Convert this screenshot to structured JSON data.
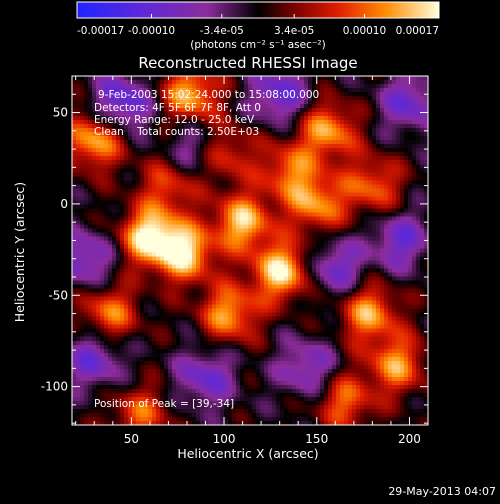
{
  "colorbar": {
    "tick_labels": [
      "-0.00017",
      "-0.00010",
      "-3.4e-05",
      "3.4e-05",
      "0.00010",
      "0.00017"
    ],
    "tick_values": [
      -0.00017,
      -0.0001,
      -3.4e-05,
      3.4e-05,
      0.0001,
      0.00017
    ],
    "range": [
      -0.00017,
      0.00017
    ],
    "unit_label": "(photons cm⁻² s⁻¹ asec⁻²)"
  },
  "chart_data": {
    "type": "heatmap",
    "title": "Reconstructed RHESSI Image",
    "xlabel": "Heliocentric X (arcsec)",
    "ylabel": "Heliocentric Y (arcsec)",
    "xlim": [
      18,
      210
    ],
    "ylim": [
      -121,
      70
    ],
    "x_ticks": [
      50,
      100,
      150,
      200
    ],
    "y_ticks": [
      -100,
      -50,
      0,
      50
    ],
    "x_tick_labels": [
      "50",
      "100",
      "150",
      "200"
    ],
    "y_tick_labels": [
      "-100",
      "-50",
      "0",
      "50"
    ],
    "peak_position": [
      39,
      -34
    ],
    "blobs": [
      {
        "x": 60,
        "y": -18,
        "amp": 1.0
      },
      {
        "x": 79,
        "y": -27,
        "amp": 0.9
      },
      {
        "x": 82,
        "y": 60,
        "amp": 0.8
      },
      {
        "x": 103,
        "y": -60,
        "amp": 0.75
      },
      {
        "x": 110,
        "y": -10,
        "amp": 0.85
      },
      {
        "x": 131,
        "y": -37,
        "amp": 0.95
      },
      {
        "x": 150,
        "y": 0,
        "amp": 0.7
      },
      {
        "x": 156,
        "y": 40,
        "amp": 0.75
      },
      {
        "x": 30,
        "y": 35,
        "amp": 0.8
      },
      {
        "x": 135,
        "y": 18,
        "amp": 0.6
      },
      {
        "x": 38,
        "y": -60,
        "amp": 0.65
      },
      {
        "x": 178,
        "y": -60,
        "amp": 0.75
      },
      {
        "x": 193,
        "y": -88,
        "amp": 0.7
      },
      {
        "x": 165,
        "y": -108,
        "amp": 0.6
      },
      {
        "x": 55,
        "y": -115,
        "amp": 0.55
      },
      {
        "x": 100,
        "y": 28,
        "amp": 0.55
      },
      {
        "x": 180,
        "y": 10,
        "amp": 0.6
      },
      {
        "x": 70,
        "y": 10,
        "amp": 0.5
      }
    ],
    "holes": [
      {
        "x": 45,
        "y": 55,
        "amp": 0.7
      },
      {
        "x": 130,
        "y": 60,
        "amp": 0.6
      },
      {
        "x": 25,
        "y": -30,
        "amp": 0.55
      },
      {
        "x": 160,
        "y": -35,
        "amp": 0.55
      },
      {
        "x": 195,
        "y": -20,
        "amp": 0.55
      },
      {
        "x": 90,
        "y": -95,
        "amp": 0.55
      },
      {
        "x": 30,
        "y": -85,
        "amp": 0.55
      },
      {
        "x": 145,
        "y": -90,
        "amp": 0.5
      },
      {
        "x": 200,
        "y": 55,
        "amp": 0.55
      },
      {
        "x": 85,
        "y": 30,
        "amp": 0.45
      }
    ]
  },
  "annotations": {
    "time_range": "9-Feb-2003 15:02:24.000 to 15:08:00.000",
    "detectors": "Detectors: 4F 5F 6F 7F 8F, Att 0",
    "energy": "Energy Range: 12.0 - 25.0 keV",
    "clean": "Clean    Total counts: 2.50E+03",
    "peak": "Position of Peak = [39,-34]"
  },
  "timestamp": "29-May-2013 04:07"
}
